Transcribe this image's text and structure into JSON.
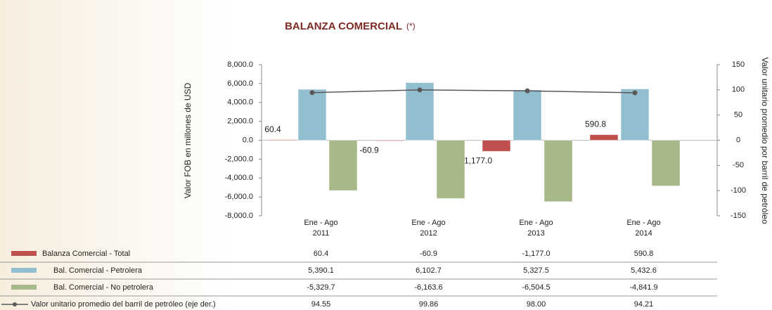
{
  "chart_data": {
    "type": "bar",
    "title": "BALANZA COMERCIAL",
    "title_note": "(*)",
    "ylabel": "Valor FOB en millones de USD",
    "y2label": "Valor unitario promedio por barril de petróleo",
    "categories": [
      "Ene - Ago\n2011",
      "Ene - Ago\n2012",
      "Ene - Ago\n2013",
      "Ene - Ago\n2014"
    ],
    "ylim": [
      -8000,
      8000
    ],
    "yticks": [
      {
        "value": 8000,
        "label": "8,000.0"
      },
      {
        "value": 6000,
        "label": "6,000.0"
      },
      {
        "value": 4000,
        "label": "4,000.0"
      },
      {
        "value": 2000,
        "label": "2,000.0"
      },
      {
        "value": 0,
        "label": "0.0"
      },
      {
        "value": -2000,
        "label": "-2,000.0"
      },
      {
        "value": -4000,
        "label": "-4,000.0"
      },
      {
        "value": -6000,
        "label": "-6,000.0"
      },
      {
        "value": -8000,
        "label": "-8,000.0"
      }
    ],
    "y2lim": [
      -150,
      150
    ],
    "y2ticks": [
      150,
      100,
      50,
      0,
      -50,
      -100,
      -150
    ],
    "series": [
      {
        "name": "Balanza Comercial - Total",
        "color": "#c0504d",
        "values": [
          60.4,
          -60.9,
          -1177.0,
          590.8
        ],
        "value_labels": [
          "60.4",
          "-60.9",
          "-1,177.0",
          "590.8"
        ]
      },
      {
        "name": "Bal. Comercial - Petrolera",
        "color": "#92bfcf",
        "values": [
          5390.1,
          6102.7,
          5327.5,
          5432.6
        ],
        "value_labels": [
          "5,390.1",
          "6,102.7",
          "5,327.5",
          "5,432.6"
        ]
      },
      {
        "name": "Bal. Comercial - No petrolera",
        "color": "#a7b889",
        "values": [
          -5329.7,
          -6163.6,
          -6504.5,
          -4841.9
        ],
        "value_labels": [
          "-5,329.7",
          "-6,163.6",
          "-6,504.5",
          "-4,841.9"
        ]
      },
      {
        "name": "Valor unitario promedio del barril de petróleo (eje der.)",
        "color": "#595959",
        "axis": "y2",
        "type": "line",
        "values": [
          94.55,
          99.86,
          98.0,
          94.21
        ],
        "value_labels": [
          "94.55",
          "99.86",
          "98.00",
          "94.21"
        ]
      }
    ]
  }
}
